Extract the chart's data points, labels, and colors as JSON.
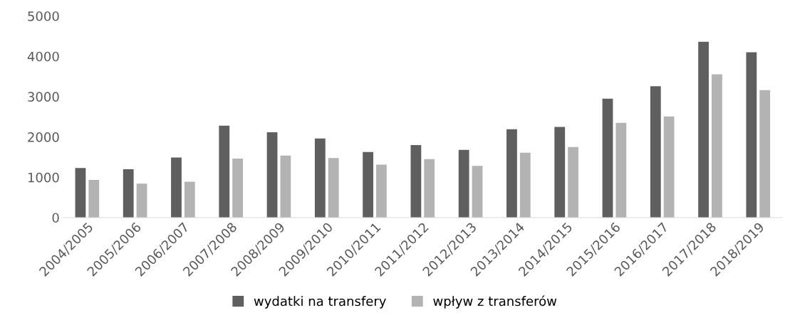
{
  "chart_data": {
    "type": "bar",
    "categories": [
      "2004/2005",
      "2005/2006",
      "2006/2007",
      "2007/2008",
      "2008/2009",
      "2009/2010",
      "2010/2011",
      "2011/2012",
      "2012/2013",
      "2013/2014",
      "2014/2015",
      "2015/2016",
      "2016/2017",
      "2017/2018",
      "2018/2019"
    ],
    "series": [
      {
        "name": "wydatki na transfery",
        "color": "#5f5f5f",
        "values": [
          1230,
          1200,
          1490,
          2280,
          2115,
          1960,
          1625,
          1800,
          1680,
          2190,
          2250,
          2950,
          3260,
          4360,
          4100
        ]
      },
      {
        "name": "wpływ z transferów",
        "color": "#b3b3b3",
        "values": [
          935,
          840,
          890,
          1465,
          1540,
          1475,
          1315,
          1450,
          1285,
          1610,
          1750,
          2350,
          2510,
          3555,
          3160
        ]
      }
    ],
    "ylim": [
      0,
      5000
    ],
    "yticks": [
      0,
      1000,
      2000,
      3000,
      4000,
      5000
    ],
    "grid": false,
    "legend": "bottom"
  }
}
